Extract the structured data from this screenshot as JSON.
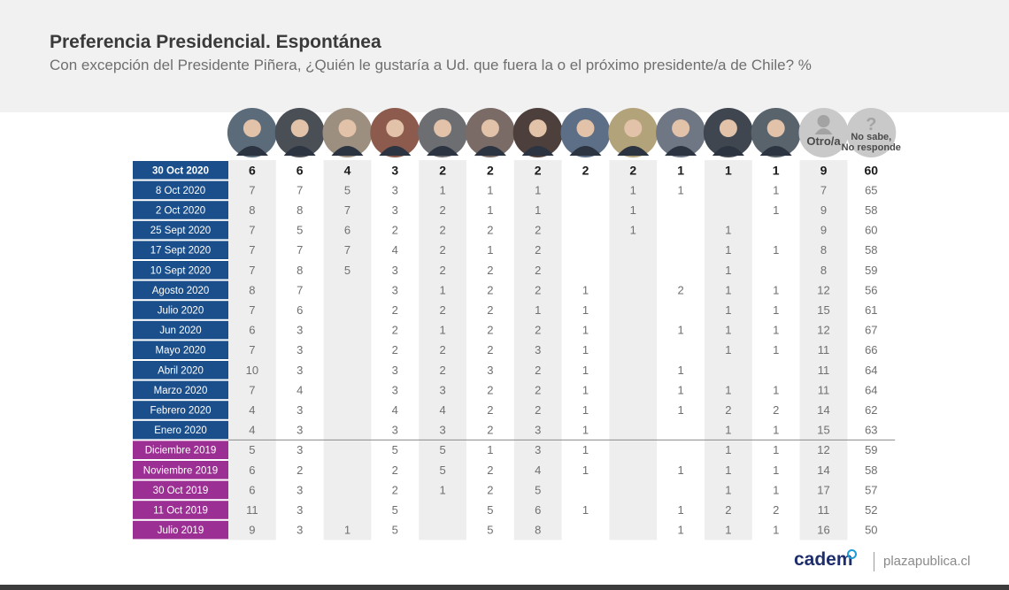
{
  "title": "Preferencia Presidencial. Espontánea",
  "subtitle": "Con excepción del Presidente Piñera, ¿Quién le gustaría a Ud. que fuera la o el próximo presidente/a de Chile? %",
  "footer": {
    "logo": "cadem",
    "site": "plazapublica.cl"
  },
  "colors": {
    "row_2020": "#1a4f8b",
    "row_2019": "#9c2f93",
    "band": "#eeeeee",
    "avatar_bg": "#c9c9c9"
  },
  "chart_data": {
    "type": "table",
    "columns": [
      "",
      "",
      "",
      "",
      "",
      "",
      "",
      "",
      "",
      "",
      "",
      "",
      "Otro/a",
      "No sabe, No responde"
    ],
    "column_icons": [
      "person-photo-icon",
      "person-photo-icon",
      "person-photo-icon",
      "person-photo-icon",
      "person-photo-icon",
      "person-photo-icon",
      "person-photo-icon",
      "person-photo-icon",
      "person-photo-icon",
      "person-photo-icon",
      "person-photo-icon",
      "person-photo-icon",
      "person-silhouette-icon",
      "question-mark-icon"
    ],
    "rows": [
      {
        "label": "30 Oct 2020",
        "year": 2020,
        "highlight": true,
        "values": [
          "6",
          "6",
          "4",
          "3",
          "2",
          "2",
          "2",
          "2",
          "2",
          "1",
          "1",
          "1",
          "9",
          "60"
        ]
      },
      {
        "label": "8 Oct 2020",
        "year": 2020,
        "values": [
          "7",
          "7",
          "5",
          "3",
          "1",
          "1",
          "1",
          "",
          "1",
          "1",
          "",
          "1",
          "7",
          "65"
        ]
      },
      {
        "label": "2 Oct 2020",
        "year": 2020,
        "values": [
          "8",
          "8",
          "7",
          "3",
          "2",
          "1",
          "1",
          "",
          "1",
          "",
          "",
          "1",
          "9",
          "58"
        ]
      },
      {
        "label": "25 Sept 2020",
        "year": 2020,
        "values": [
          "7",
          "5",
          "6",
          "2",
          "2",
          "2",
          "2",
          "",
          "1",
          "",
          "1",
          "",
          "9",
          "60"
        ]
      },
      {
        "label": "17 Sept 2020",
        "year": 2020,
        "values": [
          "7",
          "7",
          "7",
          "4",
          "2",
          "1",
          "2",
          "",
          "",
          "",
          "1",
          "1",
          "8",
          "58"
        ]
      },
      {
        "label": "10 Sept 2020",
        "year": 2020,
        "values": [
          "7",
          "8",
          "5",
          "3",
          "2",
          "2",
          "2",
          "",
          "",
          "",
          "1",
          "",
          "8",
          "59"
        ]
      },
      {
        "label": "Agosto 2020",
        "year": 2020,
        "values": [
          "8",
          "7",
          "",
          "3",
          "1",
          "2",
          "2",
          "1",
          "",
          "2",
          "1",
          "1",
          "12",
          "56"
        ]
      },
      {
        "label": "Julio 2020",
        "year": 2020,
        "values": [
          "7",
          "6",
          "",
          "2",
          "2",
          "2",
          "1",
          "1",
          "",
          "",
          "1",
          "1",
          "15",
          "61"
        ]
      },
      {
        "label": "Jun 2020",
        "year": 2020,
        "values": [
          "6",
          "3",
          "",
          "2",
          "1",
          "2",
          "2",
          "1",
          "",
          "1",
          "1",
          "1",
          "12",
          "67"
        ]
      },
      {
        "label": "Mayo 2020",
        "year": 2020,
        "values": [
          "7",
          "3",
          "",
          "2",
          "2",
          "2",
          "3",
          "1",
          "",
          "",
          "1",
          "1",
          "11",
          "66"
        ]
      },
      {
        "label": "Abril 2020",
        "year": 2020,
        "values": [
          "10",
          "3",
          "",
          "3",
          "2",
          "3",
          "2",
          "1",
          "",
          "1",
          "",
          "",
          "11",
          "64"
        ]
      },
      {
        "label": "Marzo 2020",
        "year": 2020,
        "values": [
          "7",
          "4",
          "",
          "3",
          "3",
          "2",
          "2",
          "1",
          "",
          "1",
          "1",
          "1",
          "11",
          "64"
        ]
      },
      {
        "label": "Febrero 2020",
        "year": 2020,
        "values": [
          "4",
          "3",
          "",
          "4",
          "4",
          "2",
          "2",
          "1",
          "",
          "1",
          "2",
          "2",
          "14",
          "62"
        ]
      },
      {
        "label": "Enero 2020",
        "year": 2020,
        "values": [
          "4",
          "3",
          "",
          "3",
          "3",
          "2",
          "3",
          "1",
          "",
          "",
          "1",
          "1",
          "15",
          "63"
        ]
      },
      {
        "label": "Diciembre 2019",
        "year": 2019,
        "values": [
          "5",
          "3",
          "",
          "5",
          "5",
          "1",
          "3",
          "1",
          "",
          "",
          "1",
          "1",
          "12",
          "59"
        ]
      },
      {
        "label": "Noviembre 2019",
        "year": 2019,
        "values": [
          "6",
          "2",
          "",
          "2",
          "5",
          "2",
          "4",
          "1",
          "",
          "1",
          "1",
          "1",
          "14",
          "58"
        ]
      },
      {
        "label": "30 Oct 2019",
        "year": 2019,
        "values": [
          "6",
          "3",
          "",
          "2",
          "1",
          "2",
          "5",
          "",
          "",
          "",
          "1",
          "1",
          "17",
          "57"
        ]
      },
      {
        "label": "11 Oct 2019",
        "year": 2019,
        "values": [
          "11",
          "3",
          "",
          "5",
          "",
          "5",
          "6",
          "1",
          "",
          "1",
          "2",
          "2",
          "11",
          "52"
        ]
      },
      {
        "label": "Julio 2019",
        "year": 2019,
        "values": [
          "9",
          "3",
          "1",
          "5",
          "",
          "5",
          "8",
          "",
          "",
          "1",
          "1",
          "1",
          "16",
          "50"
        ]
      }
    ]
  }
}
